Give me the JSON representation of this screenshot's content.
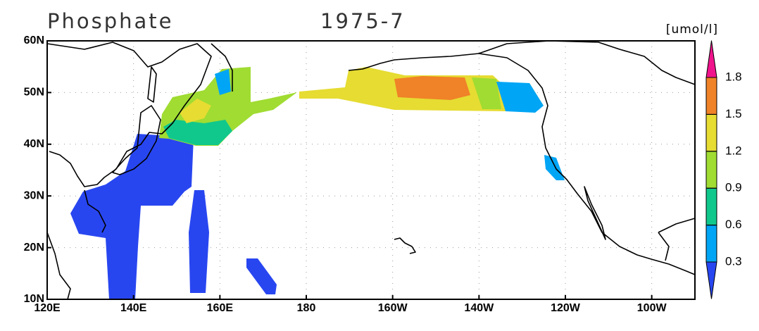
{
  "title": "Phosphate",
  "subtitle": "1975-7",
  "unit": "[umol/l]",
  "map": {
    "lonlim": [
      120,
      270
    ],
    "latlim": [
      10,
      60
    ],
    "grid": true,
    "lonticks": [
      {
        "value": 120,
        "label": "120E"
      },
      {
        "value": 140,
        "label": "140E"
      },
      {
        "value": 160,
        "label": "160E"
      },
      {
        "value": 180,
        "label": "180"
      },
      {
        "value": 200,
        "label": "160W"
      },
      {
        "value": 220,
        "label": "140W"
      },
      {
        "value": 240,
        "label": "120W"
      },
      {
        "value": 260,
        "label": "100W"
      }
    ],
    "latticks": [
      {
        "value": 10,
        "label": "10N"
      },
      {
        "value": 20,
        "label": "20N"
      },
      {
        "value": 30,
        "label": "30N"
      },
      {
        "value": 40,
        "label": "40N"
      },
      {
        "value": 50,
        "label": "50N"
      },
      {
        "value": 60,
        "label": "60N"
      }
    ]
  },
  "colorbar": {
    "levels": [
      0.3,
      0.6,
      0.9,
      1.2,
      1.5,
      1.8
    ],
    "colors": [
      "#2846f0",
      "#00a5f5",
      "#10c88c",
      "#a0dc32",
      "#e6dc32",
      "#f08228",
      "#f0148c"
    ]
  }
}
